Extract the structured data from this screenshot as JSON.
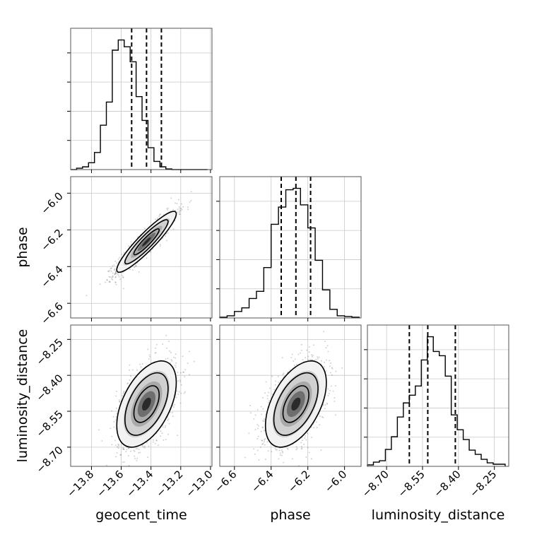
{
  "chart_data": {
    "type": "corner",
    "parameters": [
      "geocent_time",
      "phase",
      "luminosity_distance"
    ],
    "axis_labels": {
      "geocent_time": "geocent_time",
      "phase": "phase",
      "luminosity_distance": "luminosity_distance"
    },
    "ranges": {
      "geocent_time": [
        -13.94,
        -12.99
      ],
      "phase": [
        -6.68,
        -5.91
      ],
      "luminosity_distance": [
        -8.78,
        -8.19
      ]
    },
    "ticks": {
      "geocent_time": {
        "values": [
          -13.8,
          -13.6,
          -13.4,
          -13.2,
          -13.0
        ],
        "labels": [
          "−13.8",
          "−13.6",
          "−13.4",
          "−13.2",
          "−13.0"
        ]
      },
      "phase": {
        "values": [
          -6.6,
          -6.4,
          -6.2,
          -6.0
        ],
        "labels": [
          "−6.6",
          "−6.4",
          "−6.2",
          "−6.0"
        ]
      },
      "luminosity_distance": {
        "values": [
          -8.7,
          -8.55,
          -8.4,
          -8.25
        ],
        "labels": [
          "−8.70",
          "−8.55",
          "−8.40",
          "−8.25"
        ]
      }
    },
    "quantiles": {
      "geocent_time": [
        -13.53,
        -13.43,
        -13.33
      ],
      "phase": [
        -6.345,
        -6.265,
        -6.185
      ],
      "luminosity_distance": [
        -8.605,
        -8.528,
        -8.413
      ]
    },
    "histograms": {
      "geocent_time": {
        "edges": [
          -13.94,
          -13.9,
          -13.86,
          -13.82,
          -13.78,
          -13.74,
          -13.7,
          -13.66,
          -13.62,
          -13.58,
          -13.54,
          -13.5,
          -13.46,
          -13.42,
          -13.38,
          -13.34,
          -13.3,
          -13.26,
          -13.22,
          -13.18,
          -13.14,
          -13.1,
          -13.06,
          -13.02
        ],
        "counts": [
          0,
          2,
          4,
          10,
          25,
          65,
          99,
          175,
          190,
          180,
          158,
          107,
          72,
          32,
          12,
          4,
          1,
          0,
          0,
          0,
          0,
          0,
          0
        ]
      },
      "phase": {
        "edges": [
          -6.68,
          -6.64,
          -6.6,
          -6.56,
          -6.52,
          -6.48,
          -6.44,
          -6.4,
          -6.36,
          -6.32,
          -6.28,
          -6.24,
          -6.2,
          -6.16,
          -6.12,
          -6.08,
          -6.04,
          -6.0,
          -5.96,
          -5.92
        ],
        "counts": [
          1,
          3,
          9,
          14,
          27,
          37,
          70,
          130,
          154,
          178,
          180,
          157,
          125,
          80,
          39,
          12,
          3,
          2,
          1
        ]
      },
      "luminosity_distance": {
        "edges": [
          -8.78,
          -8.755,
          -8.73,
          -8.705,
          -8.68,
          -8.655,
          -8.63,
          -8.605,
          -8.58,
          -8.555,
          -8.53,
          -8.505,
          -8.48,
          -8.455,
          -8.43,
          -8.405,
          -8.38,
          -8.355,
          -8.33,
          -8.305,
          -8.28,
          -8.255,
          -8.23,
          -8.205
        ],
        "counts": [
          2,
          6,
          8,
          24,
          42,
          70,
          90,
          101,
          114,
          151,
          184,
          163,
          157,
          128,
          73,
          52,
          38,
          23,
          17,
          10,
          5,
          3,
          3
        ]
      }
    },
    "density_2d": [
      {
        "x": "geocent_time",
        "y": "phase",
        "mean": [
          -13.43,
          -6.265
        ],
        "sd": [
          0.1,
          0.083
        ],
        "corr": 0.92,
        "n_samples": 1200
      },
      {
        "x": "geocent_time",
        "y": "luminosity_distance",
        "mean": [
          -13.43,
          -8.52
        ],
        "sd": [
          0.1,
          0.09
        ],
        "corr": 0.5,
        "n_samples": 1200
      },
      {
        "x": "phase",
        "y": "luminosity_distance",
        "mean": [
          -6.265,
          -8.52
        ],
        "sd": [
          0.083,
          0.09
        ],
        "corr": 0.5,
        "n_samples": 1200
      }
    ],
    "grid": true
  }
}
